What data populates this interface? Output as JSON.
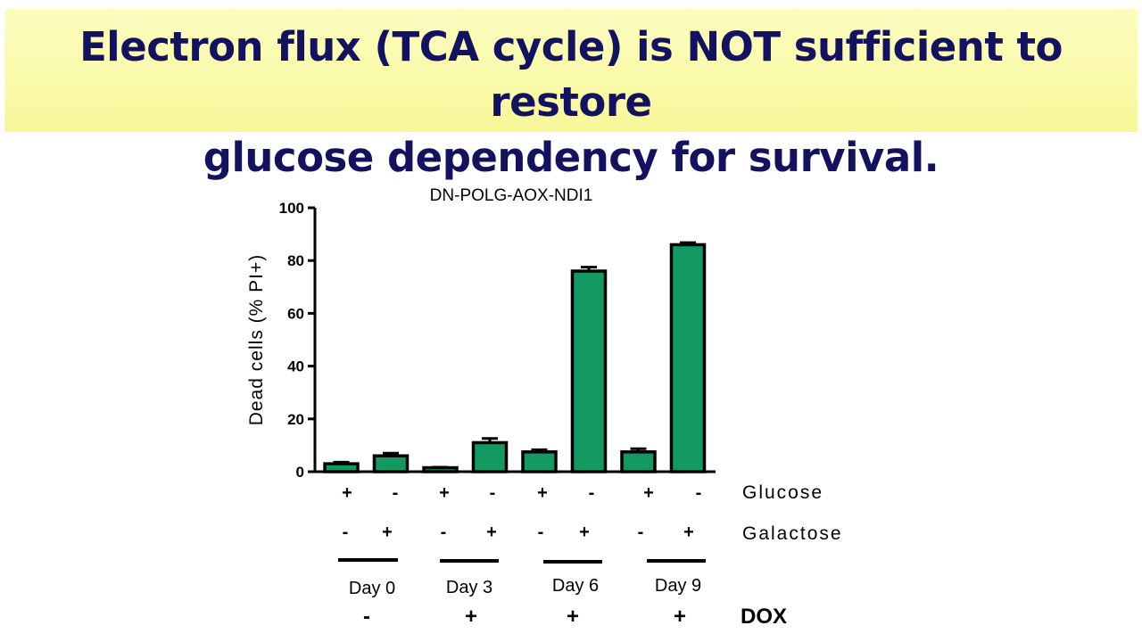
{
  "slide": {
    "title_line1": "Electron flux (TCA cycle) is NOT sufficient to restore",
    "title_line2": "glucose dependency for survival."
  },
  "colors": {
    "banner_bg": "#fbfaa8",
    "title_text": "#131260",
    "bar_fill": "#139a63"
  },
  "chart_data": {
    "type": "bar",
    "title": "DN-POLG-AOX-NDI1",
    "ylabel": "Dead cells (% PI+)",
    "ylim": [
      0,
      100
    ],
    "yticks": [
      "0",
      "20",
      "40",
      "60",
      "80",
      "100"
    ],
    "grid": false,
    "values": [
      3,
      6,
      1.5,
      11,
      7.5,
      76,
      7.5,
      86
    ],
    "errors": [
      0.6,
      1,
      0.2,
      1.6,
      0.8,
      1.5,
      1.2,
      0.8
    ],
    "glucose": [
      "+",
      "-",
      "+",
      "-",
      "+",
      "-",
      "+",
      "-"
    ],
    "galactose": [
      "-",
      "+",
      "-",
      "+",
      "-",
      "+",
      "-",
      "+"
    ],
    "glucose_label": "Glucose",
    "galactose_label": "Galactose",
    "groups": [
      {
        "day": "Day 0",
        "dox": "-"
      },
      {
        "day": "Day 3",
        "dox": "+"
      },
      {
        "day": "Day 6",
        "dox": "+"
      },
      {
        "day": "Day 9",
        "dox": "+"
      }
    ],
    "dox_label": "DOX"
  }
}
